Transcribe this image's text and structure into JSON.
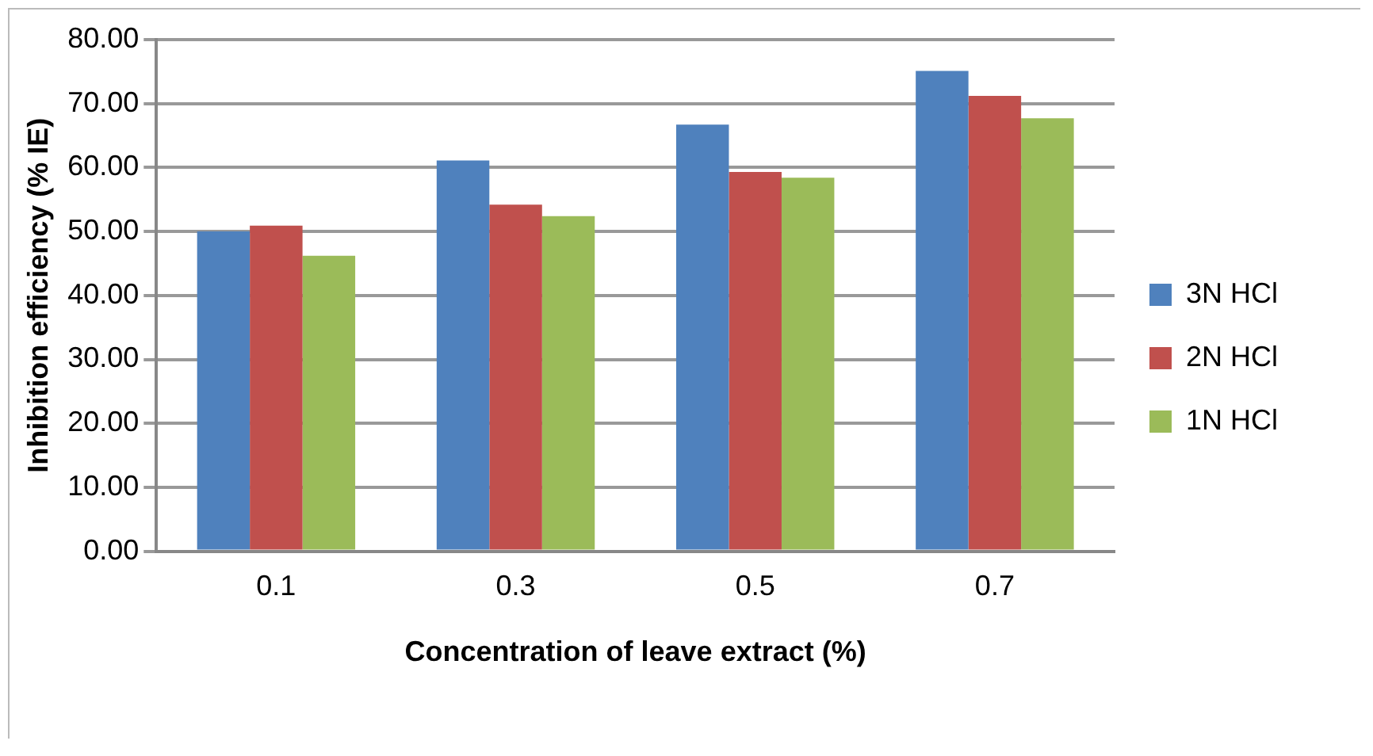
{
  "chart_data": {
    "type": "bar",
    "xlabel": "Concentration of leave extract (%)",
    "ylabel": "Inhibition efficiency (% IE)",
    "categories": [
      "0.1",
      "0.3",
      "0.5",
      "0.7"
    ],
    "series": [
      {
        "name": "3N HCl",
        "color": "#4f81bd",
        "values": [
          50.0,
          61.1,
          66.7,
          75.1
        ]
      },
      {
        "name": "2N HCl",
        "color": "#c0504d",
        "values": [
          50.9,
          54.2,
          59.3,
          71.2
        ]
      },
      {
        "name": "1N HCl",
        "color": "#9bbb59",
        "values": [
          46.2,
          52.4,
          58.4,
          67.7
        ]
      }
    ],
    "ylim": [
      0,
      80
    ],
    "yticks": [
      {
        "value": 0,
        "label": "0.00"
      },
      {
        "value": 10,
        "label": "10.00"
      },
      {
        "value": 20,
        "label": "20.00"
      },
      {
        "value": 30,
        "label": "30.00"
      },
      {
        "value": 40,
        "label": "40.00"
      },
      {
        "value": 50,
        "label": "50.00"
      },
      {
        "value": 60,
        "label": "60.00"
      },
      {
        "value": 70,
        "label": "70.00"
      },
      {
        "value": 80,
        "label": "80.00"
      }
    ],
    "grid": "y",
    "legend": "right"
  }
}
